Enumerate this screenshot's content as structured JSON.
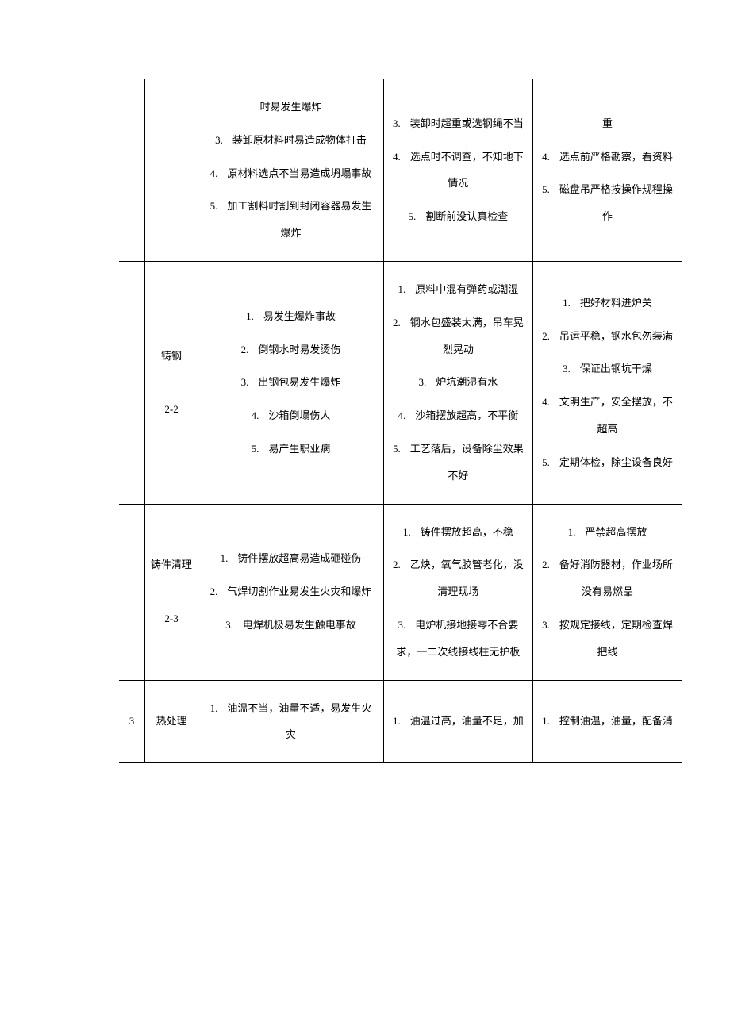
{
  "rows": [
    {
      "idx": "",
      "name": "",
      "col3_start": 2,
      "col3": [
        "时易发生爆炸",
        "装卸原材料时易造成物体打击",
        "原材料选点不当易造成坍塌事故",
        "加工割料时割到封闭容器易发生爆炸"
      ],
      "col4_start": 2,
      "col4": [
        "装卸时超重或选钢绳不当",
        "选点时不调查，不知地下情况",
        "割断前没认真检查"
      ],
      "col5_start": 3,
      "col5": [
        "重",
        "选点前严格勘察，看资料",
        "磁盘吊严格按操作规程操作"
      ]
    },
    {
      "idx": "",
      "name": "铸钢\n2-2",
      "col3_start": 0,
      "col3": [
        "易发生爆炸事故",
        "倒钢水时易发烫伤",
        "出钢包易发生爆炸",
        "沙箱倒塌伤人",
        "易产生职业病"
      ],
      "col4_start": 0,
      "col4": [
        "原料中混有弹药或潮湿",
        "钢水包盛装太满，吊车晃烈晃动",
        "炉坑潮湿有水",
        "沙箱摆放超高，不平衡",
        "工艺落后，设备除尘效果不好"
      ],
      "col5_start": 0,
      "col5": [
        "把好材料进炉关",
        "吊运平稳，钢水包勿装满",
        "保证出钢坑干燥",
        "文明生产，安全摆放，不超高",
        "定期体检，除尘设备良好"
      ]
    },
    {
      "idx": "",
      "name": "铸件清理\n2-3",
      "col3_start": 0,
      "col3": [
        "铸件摆放超高易造成砸碰伤",
        "气焊切割作业易发生火灾和爆炸",
        "电焊机极易发生触电事故"
      ],
      "col4_start": 0,
      "col4": [
        "铸件摆放超高，不稳",
        "乙炔，氧气胶管老化，没清理现场",
        "电炉机接地接零不合要求，一二次线接线柱无护板"
      ],
      "col5_start": 0,
      "col5": [
        "严禁超高摆放",
        "备好消防器材，作业场所没有易燃品",
        "按规定接线，定期检查焊把线"
      ]
    },
    {
      "idx": "3",
      "name": "热处理",
      "col3_start": 0,
      "col3": [
        "油温不当，油量不适，易发生火灾"
      ],
      "col4_start": 0,
      "col4": [
        "油温过高，油量不足，加"
      ],
      "col5_start": 0,
      "col5": [
        "控制油温，油量，配备消"
      ]
    }
  ]
}
